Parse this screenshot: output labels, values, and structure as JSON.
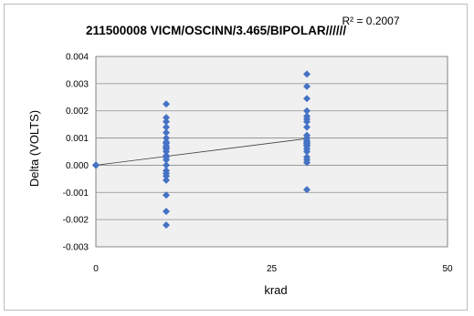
{
  "chart_data": {
    "type": "scatter",
    "title": "211500008  VICM/OSCINN/3.465/BIPOLAR",
    "title_suffix": "//////",
    "annotation": "R² = 0.2007",
    "xlabel": "krad",
    "ylabel": "Delta (VOLTS)",
    "xlim": [
      0,
      50
    ],
    "ylim": [
      -0.003,
      0.004
    ],
    "x_ticks": [
      "0",
      "25",
      "50"
    ],
    "y_ticks": [
      "0.004",
      "0.003",
      "0.002",
      "0.001",
      "0.000",
      "-0.001",
      "-0.002",
      "-0.003"
    ],
    "grid": "horizontal",
    "legend": "none",
    "marker_color": "#4472C4",
    "plot_bg": "#F0F0F0",
    "trendline": {
      "x": [
        0,
        30
      ],
      "y": [
        0,
        0.00098
      ]
    },
    "series": [
      {
        "x": [
          0,
          0,
          0,
          0,
          10,
          10,
          10,
          10,
          10,
          10,
          10,
          10,
          10,
          10,
          10,
          10,
          10,
          10,
          10,
          10,
          10,
          10,
          10,
          10,
          10,
          10,
          10,
          30,
          30,
          30,
          30,
          30,
          30,
          30,
          30,
          30,
          30,
          30,
          30,
          30,
          30,
          30,
          30,
          30,
          30,
          30,
          30,
          30
        ],
        "y": [
          0,
          0,
          0,
          0,
          0.00225,
          0.00175,
          0.0016,
          0.0014,
          0.0012,
          0.001,
          0.00085,
          0.0008,
          0.0007,
          0.0006,
          0.0005,
          0.0003,
          0.0002,
          0.0,
          -0.0002,
          -0.0003,
          -0.0004,
          -0.00055,
          -0.0011,
          -0.0017,
          -0.0022,
          0.00065,
          0.00035,
          0.00335,
          0.0029,
          0.00245,
          0.002,
          0.0018,
          0.0017,
          0.0014,
          0.001,
          0.0009,
          0.0008,
          0.00075,
          0.0007,
          0.0006,
          0.0005,
          0.0003,
          0.0002,
          0.0001,
          -0.0009,
          0.0016,
          0.0011,
          0.00085
        ]
      }
    ]
  }
}
